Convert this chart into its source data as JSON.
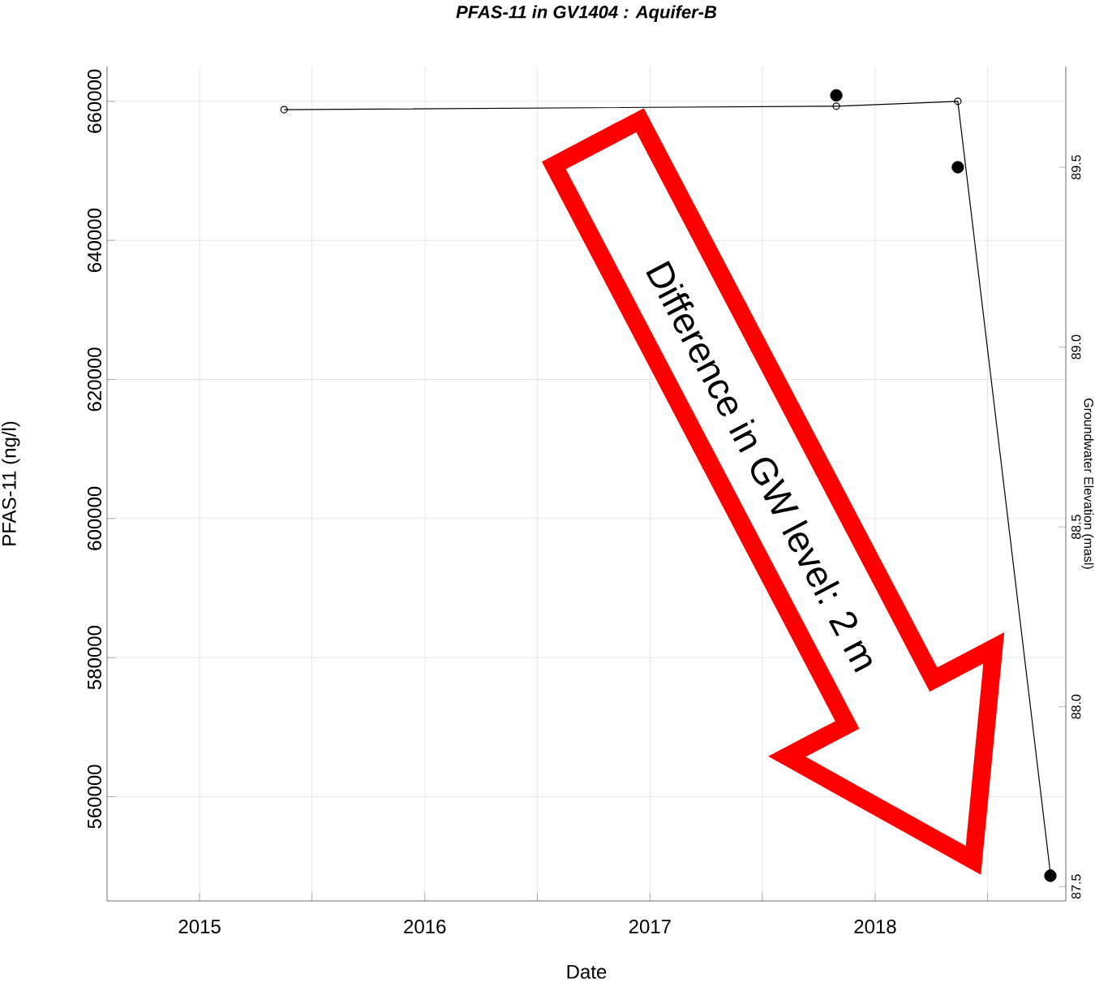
{
  "chart_data": {
    "type": "line",
    "title": "PFAS-11 in GV1404 : Aquifer-B",
    "xlabel": "Date",
    "ylabel": "PFAS-11 (ng/l)",
    "y2label": "Groundwater Elevation (masl)",
    "series": [
      {
        "color": "#000000",
        "marker": "circle",
        "x": [
          "2015-05-18",
          "2017-10-30",
          "2018-05-15",
          "2018-10-12"
        ],
        "values": [
          658800,
          659300,
          660000,
          549000
        ]
      },
      {
        "type": "scatter",
        "color": "#000000",
        "marker": "circle",
        "axis": "y2",
        "x": [
          "2017-10-30",
          "2018-05-15",
          "2018-10-12"
        ],
        "values": [
          89.7,
          89.5,
          87.53
        ]
      }
    ],
    "xlim": [
      "2014-08-04",
      "2018-11-06"
    ],
    "xticks": [
      "2015",
      {
        "value": "2015-07-02",
        "label": null
      },
      "2016",
      {
        "value": "2016-07-02",
        "label": null
      },
      "2017",
      {
        "value": "2017-07-02",
        "label": null
      },
      "2018",
      {
        "value": "2018-07-02",
        "label": null
      }
    ],
    "ylim": [
      545000,
      665000
    ],
    "yticks": [
      560000,
      580000,
      600000,
      620000,
      640000,
      660000
    ],
    "y2lim": [
      87.46,
      89.78
    ],
    "y2ticks": [
      {
        "value": 87.5,
        "label": "87.5"
      },
      {
        "value": 88.0,
        "label": "88.0"
      },
      {
        "value": 88.5,
        "label": "88.5"
      },
      {
        "value": 89.0,
        "label": "89.0"
      },
      {
        "value": 89.5,
        "label": "89.5"
      }
    ],
    "grid": true,
    "annotations": [
      "Difference in GW level: 2 m"
    ]
  }
}
